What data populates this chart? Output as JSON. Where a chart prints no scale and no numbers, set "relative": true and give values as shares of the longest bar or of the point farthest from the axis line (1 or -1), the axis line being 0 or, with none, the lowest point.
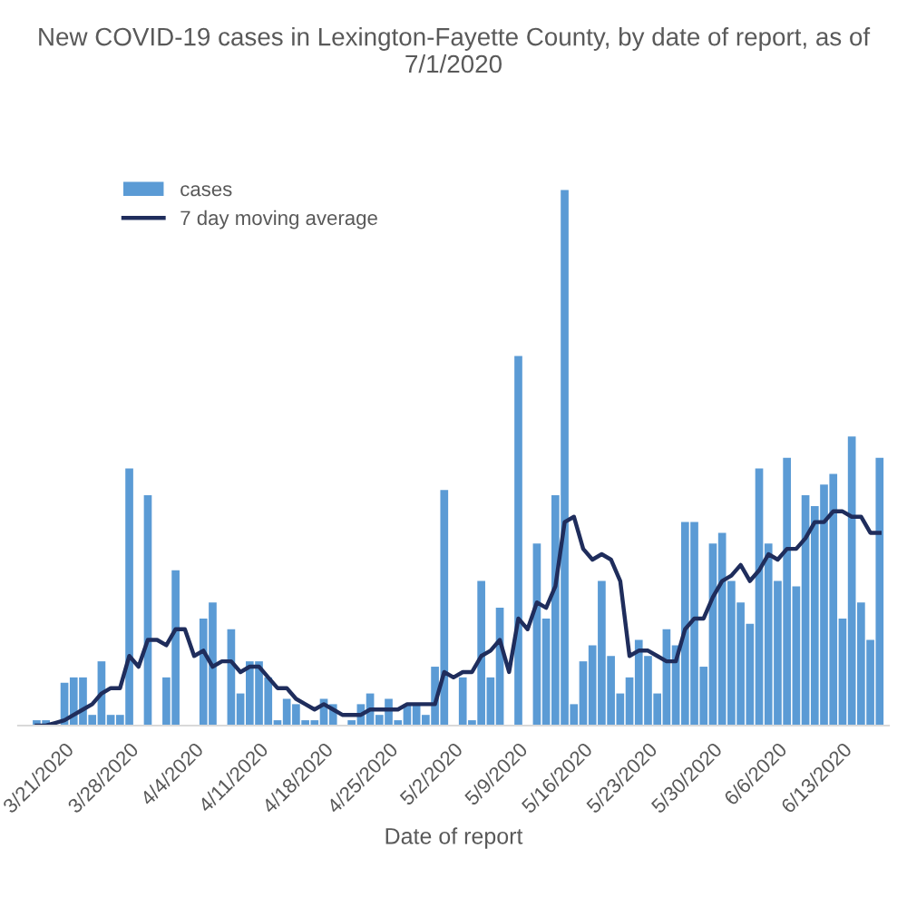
{
  "chart_data": {
    "type": "bar",
    "title": "New COVID-19 cases in Lexington-Fayette County, by date of report, as of 7/1/2020",
    "xlabel": "Date of report",
    "relative": true,
    "x": [
      "2020-03-18",
      "2020-03-19",
      "2020-03-20",
      "2020-03-21",
      "2020-03-22",
      "2020-03-23",
      "2020-03-24",
      "2020-03-25",
      "2020-03-26",
      "2020-03-27",
      "2020-03-28",
      "2020-03-29",
      "2020-03-30",
      "2020-03-31",
      "2020-04-01",
      "2020-04-02",
      "2020-04-03",
      "2020-04-04",
      "2020-04-05",
      "2020-04-06",
      "2020-04-07",
      "2020-04-08",
      "2020-04-09",
      "2020-04-10",
      "2020-04-11",
      "2020-04-12",
      "2020-04-13",
      "2020-04-14",
      "2020-04-15",
      "2020-04-16",
      "2020-04-17",
      "2020-04-18",
      "2020-04-19",
      "2020-04-20",
      "2020-04-21",
      "2020-04-22",
      "2020-04-23",
      "2020-04-24",
      "2020-04-25",
      "2020-04-26",
      "2020-04-27",
      "2020-04-28",
      "2020-04-29",
      "2020-04-30",
      "2020-05-01",
      "2020-05-02",
      "2020-05-03",
      "2020-05-04",
      "2020-05-05",
      "2020-05-06",
      "2020-05-07",
      "2020-05-08",
      "2020-05-09",
      "2020-05-10",
      "2020-05-11",
      "2020-05-12",
      "2020-05-13",
      "2020-05-14",
      "2020-05-15",
      "2020-05-16",
      "2020-05-17",
      "2020-05-18",
      "2020-05-19",
      "2020-05-20",
      "2020-05-21",
      "2020-05-22",
      "2020-05-23",
      "2020-05-24",
      "2020-05-25",
      "2020-05-26",
      "2020-05-27",
      "2020-05-28",
      "2020-05-29",
      "2020-05-30",
      "2020-05-31",
      "2020-06-01",
      "2020-06-02",
      "2020-06-03",
      "2020-06-04",
      "2020-06-05",
      "2020-06-06",
      "2020-06-07",
      "2020-06-08",
      "2020-06-09",
      "2020-06-10",
      "2020-06-11",
      "2020-06-12",
      "2020-06-13",
      "2020-06-14",
      "2020-06-15",
      "2020-06-16",
      "2020-06-17"
    ],
    "xlim": [
      "2020-03-16",
      "2020-06-18"
    ],
    "xticks": [
      {
        "value": "2020-03-21",
        "label": "3/21/2020"
      },
      {
        "value": "2020-03-28",
        "label": "3/28/2020"
      },
      {
        "value": "2020-04-04",
        "label": "4/4/2020"
      },
      {
        "value": "2020-04-11",
        "label": "4/11/2020"
      },
      {
        "value": "2020-04-18",
        "label": "4/18/2020"
      },
      {
        "value": "2020-04-25",
        "label": "4/25/2020"
      },
      {
        "value": "2020-05-02",
        "label": "5/2/2020"
      },
      {
        "value": "2020-05-09",
        "label": "5/9/2020"
      },
      {
        "value": "2020-05-16",
        "label": "5/16/2020"
      },
      {
        "value": "2020-05-23",
        "label": "5/23/2020"
      },
      {
        "value": "2020-05-30",
        "label": "5/30/2020"
      },
      {
        "value": "2020-06-06",
        "label": "6/6/2020"
      },
      {
        "value": "2020-06-13",
        "label": "6/13/2020"
      }
    ],
    "legend": "top left",
    "grid": false,
    "series": [
      {
        "name": "cases",
        "color": "#5b9bd5",
        "values": [
          0.01,
          0.01,
          0,
          0.08,
          0.09,
          0.09,
          0.02,
          0.12,
          0.02,
          0.02,
          0.48,
          0,
          0.43,
          0,
          0.09,
          0.29,
          0,
          0,
          0.2,
          0.23,
          0,
          0.18,
          0.06,
          0.12,
          0.12,
          0.09,
          0.01,
          0.05,
          0.04,
          0.01,
          0.01,
          0.05,
          0.04,
          0,
          0.01,
          0.04,
          0.06,
          0.02,
          0.05,
          0.01,
          0.04,
          0.04,
          0.02,
          0.11,
          0.44,
          0,
          0.09,
          0.01,
          0.27,
          0.09,
          0.22,
          0,
          0.69,
          0,
          0.34,
          0.2,
          0.43,
          1.0,
          0.04,
          0.12,
          0.15,
          0.27,
          0.13,
          0.06,
          0.09,
          0.16,
          0.13,
          0.06,
          0.18,
          0.15,
          0.38,
          0.38,
          0.11,
          0.34,
          0.36,
          0.27,
          0.23,
          0.19,
          0.48,
          0.34,
          0.27,
          0.5,
          0.26,
          0.43,
          0.41,
          0.45,
          0.47,
          0.2,
          0.54,
          0.23,
          0.16,
          0.5
        ]
      },
      {
        "name": "7 day moving average",
        "type": "line",
        "color": "#1f2d5c",
        "line_style": "solid",
        "values": [
          0,
          0,
          0.005,
          0.01,
          0.02,
          0.03,
          0.04,
          0.06,
          0.07,
          0.07,
          0.13,
          0.11,
          0.16,
          0.16,
          0.15,
          0.18,
          0.18,
          0.13,
          0.14,
          0.11,
          0.12,
          0.12,
          0.1,
          0.11,
          0.11,
          0.09,
          0.07,
          0.07,
          0.05,
          0.04,
          0.03,
          0.04,
          0.03,
          0.02,
          0.02,
          0.02,
          0.03,
          0.03,
          0.03,
          0.03,
          0.04,
          0.04,
          0.04,
          0.04,
          0.1,
          0.09,
          0.1,
          0.1,
          0.13,
          0.14,
          0.16,
          0.1,
          0.2,
          0.18,
          0.23,
          0.22,
          0.26,
          0.38,
          0.39,
          0.33,
          0.31,
          0.32,
          0.31,
          0.27,
          0.13,
          0.14,
          0.14,
          0.13,
          0.12,
          0.12,
          0.18,
          0.2,
          0.2,
          0.24,
          0.27,
          0.28,
          0.3,
          0.27,
          0.29,
          0.32,
          0.31,
          0.33,
          0.33,
          0.35,
          0.38,
          0.38,
          0.4,
          0.4,
          0.39,
          0.39,
          0.36,
          0.36
        ]
      }
    ]
  }
}
